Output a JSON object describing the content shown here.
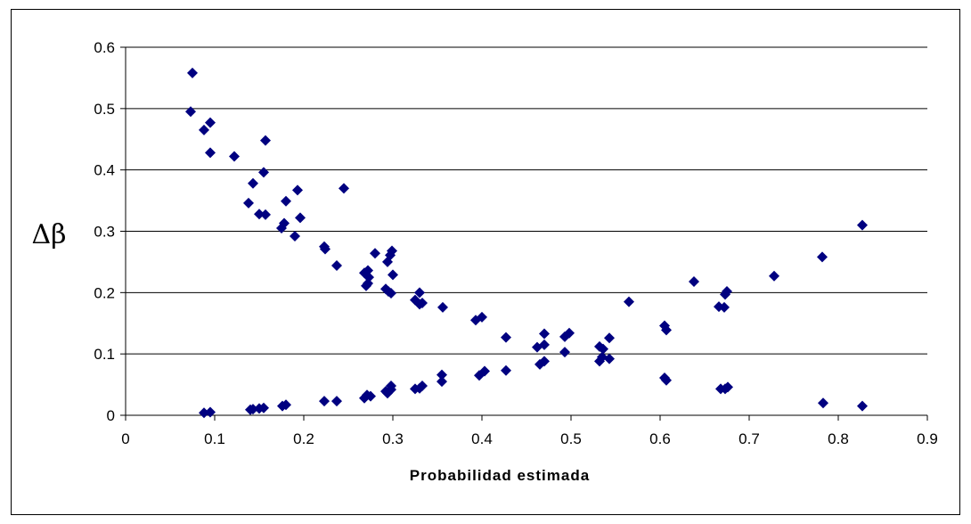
{
  "chart_data": {
    "type": "scatter",
    "title": "",
    "xlabel": "Probabilidad estimada",
    "ylabel": "Δβ",
    "xlim": [
      0,
      0.9
    ],
    "ylim": [
      0,
      0.6
    ],
    "xticks": [
      "0",
      "0.1",
      "0.2",
      "0.3",
      "0.4",
      "0.5",
      "0.6",
      "0.7",
      "0.8",
      "0.9"
    ],
    "yticks": [
      "0",
      "0.1",
      "0.2",
      "0.3",
      "0.4",
      "0.5",
      "0.6"
    ],
    "grid": "horizontal",
    "legend": "none",
    "marker_color": "#000080",
    "points": [
      [
        0.075,
        0.558
      ],
      [
        0.073,
        0.495
      ],
      [
        0.095,
        0.477
      ],
      [
        0.088,
        0.465
      ],
      [
        0.095,
        0.428
      ],
      [
        0.122,
        0.422
      ],
      [
        0.157,
        0.448
      ],
      [
        0.155,
        0.396
      ],
      [
        0.143,
        0.378
      ],
      [
        0.245,
        0.37
      ],
      [
        0.193,
        0.367
      ],
      [
        0.18,
        0.349
      ],
      [
        0.138,
        0.346
      ],
      [
        0.15,
        0.328
      ],
      [
        0.157,
        0.327
      ],
      [
        0.196,
        0.322
      ],
      [
        0.178,
        0.313
      ],
      [
        0.175,
        0.305
      ],
      [
        0.19,
        0.292
      ],
      [
        0.223,
        0.275
      ],
      [
        0.224,
        0.271
      ],
      [
        0.299,
        0.268
      ],
      [
        0.28,
        0.264
      ],
      [
        0.297,
        0.261
      ],
      [
        0.294,
        0.25
      ],
      [
        0.237,
        0.244
      ],
      [
        0.272,
        0.236
      ],
      [
        0.268,
        0.232
      ],
      [
        0.3,
        0.229
      ],
      [
        0.273,
        0.225
      ],
      [
        0.272,
        0.215
      ],
      [
        0.27,
        0.211
      ],
      [
        0.292,
        0.206
      ],
      [
        0.295,
        0.202
      ],
      [
        0.298,
        0.199
      ],
      [
        0.33,
        0.2
      ],
      [
        0.325,
        0.188
      ],
      [
        0.333,
        0.183
      ],
      [
        0.33,
        0.181
      ],
      [
        0.356,
        0.176
      ],
      [
        0.565,
        0.185
      ],
      [
        0.638,
        0.218
      ],
      [
        0.675,
        0.202
      ],
      [
        0.673,
        0.197
      ],
      [
        0.728,
        0.227
      ],
      [
        0.782,
        0.258
      ],
      [
        0.827,
        0.31
      ],
      [
        0.666,
        0.177
      ],
      [
        0.672,
        0.176
      ],
      [
        0.4,
        0.16
      ],
      [
        0.393,
        0.155
      ],
      [
        0.605,
        0.146
      ],
      [
        0.607,
        0.139
      ],
      [
        0.498,
        0.134
      ],
      [
        0.47,
        0.133
      ],
      [
        0.493,
        0.128
      ],
      [
        0.427,
        0.127
      ],
      [
        0.543,
        0.126
      ],
      [
        0.47,
        0.115
      ],
      [
        0.462,
        0.111
      ],
      [
        0.532,
        0.112
      ],
      [
        0.536,
        0.108
      ],
      [
        0.493,
        0.103
      ],
      [
        0.535,
        0.095
      ],
      [
        0.543,
        0.092
      ],
      [
        0.532,
        0.088
      ],
      [
        0.47,
        0.088
      ],
      [
        0.465,
        0.083
      ],
      [
        0.403,
        0.072
      ],
      [
        0.427,
        0.073
      ],
      [
        0.355,
        0.066
      ],
      [
        0.397,
        0.065
      ],
      [
        0.605,
        0.061
      ],
      [
        0.607,
        0.057
      ],
      [
        0.355,
        0.055
      ],
      [
        0.298,
        0.048
      ],
      [
        0.333,
        0.048
      ],
      [
        0.325,
        0.043
      ],
      [
        0.33,
        0.044
      ],
      [
        0.298,
        0.042
      ],
      [
        0.292,
        0.039
      ],
      [
        0.294,
        0.036
      ],
      [
        0.668,
        0.043
      ],
      [
        0.673,
        0.043
      ],
      [
        0.676,
        0.046
      ],
      [
        0.271,
        0.033
      ],
      [
        0.275,
        0.031
      ],
      [
        0.268,
        0.028
      ],
      [
        0.237,
        0.023
      ],
      [
        0.223,
        0.023
      ],
      [
        0.18,
        0.017
      ],
      [
        0.176,
        0.015
      ],
      [
        0.155,
        0.012
      ],
      [
        0.15,
        0.011
      ],
      [
        0.143,
        0.01
      ],
      [
        0.14,
        0.009
      ],
      [
        0.095,
        0.005
      ],
      [
        0.088,
        0.004
      ],
      [
        0.783,
        0.02
      ],
      [
        0.827,
        0.015
      ]
    ]
  }
}
